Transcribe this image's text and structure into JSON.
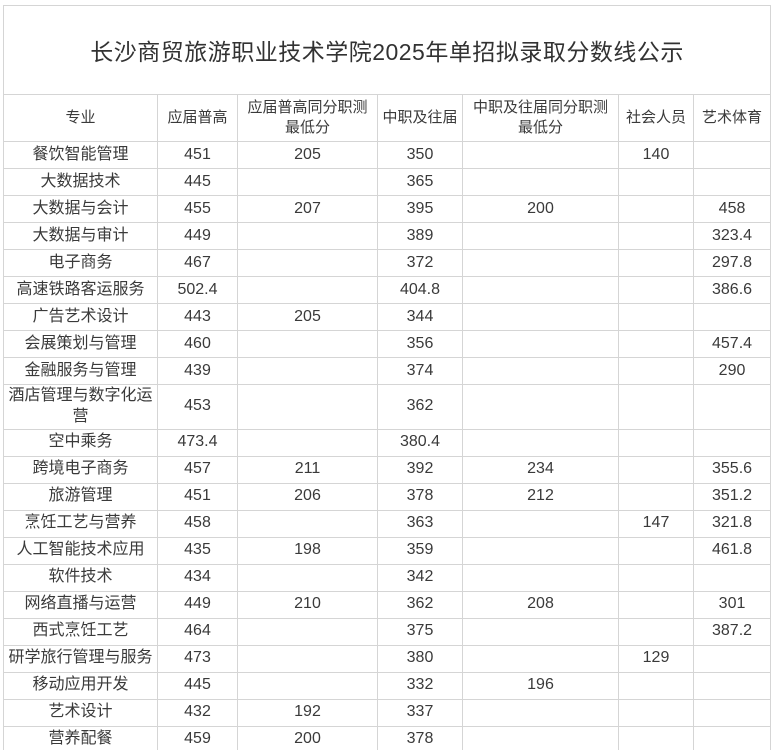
{
  "colors": {
    "border": "#d5d5d5",
    "text": "#3a3a3a",
    "background": "#ffffff"
  },
  "table": {
    "title": "长沙商贸旅游职业技术学院2025年单招拟录取分数线公示",
    "columns": [
      {
        "label": "专业"
      },
      {
        "label": "应届普高"
      },
      {
        "label": "应届普高同分职测\n最低分"
      },
      {
        "label": "中职及往届"
      },
      {
        "label": "中职及往届同分职测\n最低分"
      },
      {
        "label": "社会人员"
      },
      {
        "label": "艺术体育"
      }
    ],
    "rows": [
      {
        "major": "餐饮智能管理",
        "values": [
          "451",
          "205",
          "350",
          "",
          "140",
          ""
        ]
      },
      {
        "major": "大数据技术",
        "values": [
          "445",
          "",
          "365",
          "",
          "",
          ""
        ]
      },
      {
        "major": "大数据与会计",
        "values": [
          "455",
          "207",
          "395",
          "200",
          "",
          "458"
        ]
      },
      {
        "major": "大数据与审计",
        "values": [
          "449",
          "",
          "389",
          "",
          "",
          "323.4"
        ]
      },
      {
        "major": "电子商务",
        "values": [
          "467",
          "",
          "372",
          "",
          "",
          "297.8"
        ]
      },
      {
        "major": "高速铁路客运服务",
        "values": [
          "502.4",
          "",
          "404.8",
          "",
          "",
          "386.6"
        ]
      },
      {
        "major": "广告艺术设计",
        "values": [
          "443",
          "205",
          "344",
          "",
          "",
          ""
        ]
      },
      {
        "major": "会展策划与管理",
        "values": [
          "460",
          "",
          "356",
          "",
          "",
          "457.4"
        ]
      },
      {
        "major": "金融服务与管理",
        "values": [
          "439",
          "",
          "374",
          "",
          "",
          "290"
        ]
      },
      {
        "major": "酒店管理与数字化运营",
        "values": [
          "453",
          "",
          "362",
          "",
          "",
          ""
        ]
      },
      {
        "major": "空中乘务",
        "values": [
          "473.4",
          "",
          "380.4",
          "",
          "",
          ""
        ]
      },
      {
        "major": "跨境电子商务",
        "values": [
          "457",
          "211",
          "392",
          "234",
          "",
          "355.6"
        ]
      },
      {
        "major": "旅游管理",
        "values": [
          "451",
          "206",
          "378",
          "212",
          "",
          "351.2"
        ]
      },
      {
        "major": "烹饪工艺与营养",
        "values": [
          "458",
          "",
          "363",
          "",
          "147",
          "321.8"
        ]
      },
      {
        "major": "人工智能技术应用",
        "values": [
          "435",
          "198",
          "359",
          "",
          "",
          "461.8"
        ]
      },
      {
        "major": "软件技术",
        "values": [
          "434",
          "",
          "342",
          "",
          "",
          ""
        ]
      },
      {
        "major": "网络直播与运营",
        "values": [
          "449",
          "210",
          "362",
          "208",
          "",
          "301"
        ]
      },
      {
        "major": "西式烹饪工艺",
        "values": [
          "464",
          "",
          "375",
          "",
          "",
          "387.2"
        ]
      },
      {
        "major": "研学旅行管理与服务",
        "values": [
          "473",
          "",
          "380",
          "",
          "129",
          ""
        ]
      },
      {
        "major": "移动应用开发",
        "values": [
          "445",
          "",
          "332",
          "196",
          "",
          ""
        ]
      },
      {
        "major": "艺术设计",
        "values": [
          "432",
          "192",
          "337",
          "",
          "",
          ""
        ]
      },
      {
        "major": "营养配餐",
        "values": [
          "459",
          "200",
          "378",
          "",
          "",
          ""
        ]
      }
    ]
  }
}
